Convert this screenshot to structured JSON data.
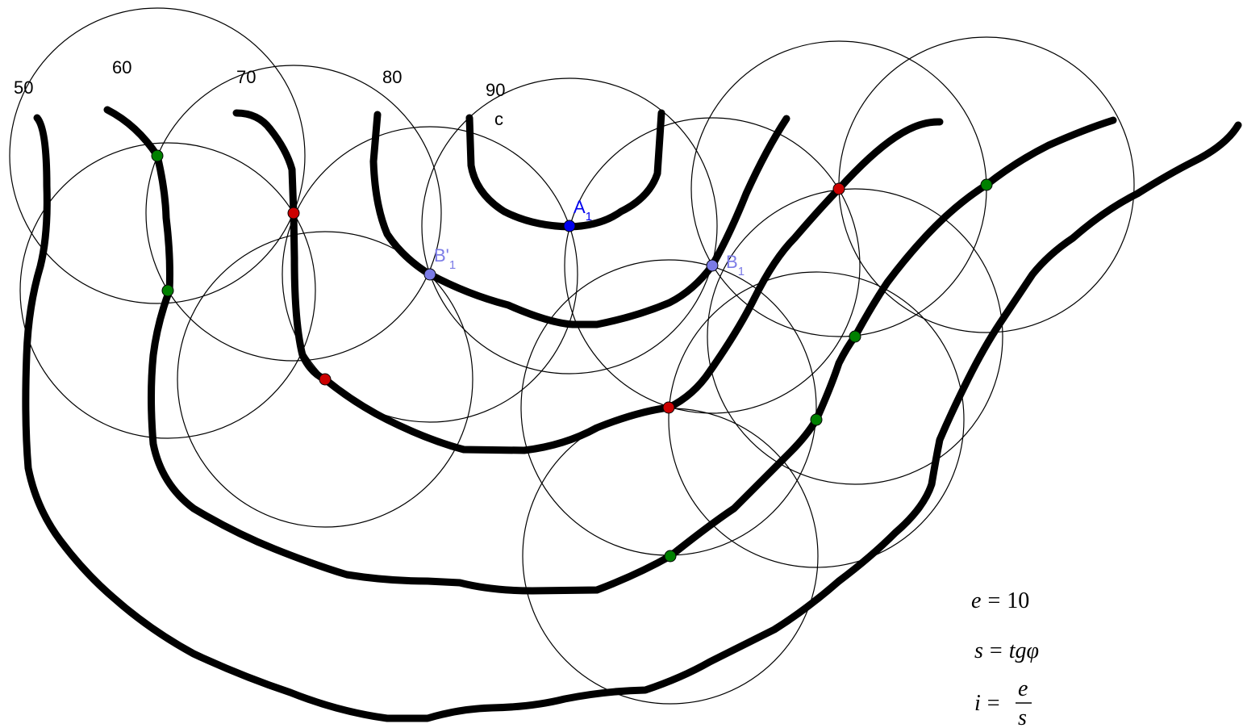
{
  "labels": {
    "c50": "50",
    "c60": "60",
    "c70": "70",
    "c80": "80",
    "c90": "90",
    "c": "c"
  },
  "points": {
    "a1": {
      "main": "A",
      "sub": "1"
    },
    "b1": {
      "main": "B",
      "sub": "1"
    },
    "b1p": {
      "main": "B'",
      "sub": "1"
    }
  },
  "formulas": {
    "e_lhs": "e",
    "e_eq": "=",
    "e_rhs": "10",
    "s_lhs": "s",
    "s_eq": "=",
    "s_rhs": "tgφ",
    "i_lhs": "i",
    "i_eq": "=",
    "i_num": "e",
    "i_den": "s"
  },
  "colors": {
    "green": "#008000",
    "red": "#cc0000",
    "blue": "#0000ee",
    "lightblue": "#7b7be6",
    "line": "#000000"
  }
}
